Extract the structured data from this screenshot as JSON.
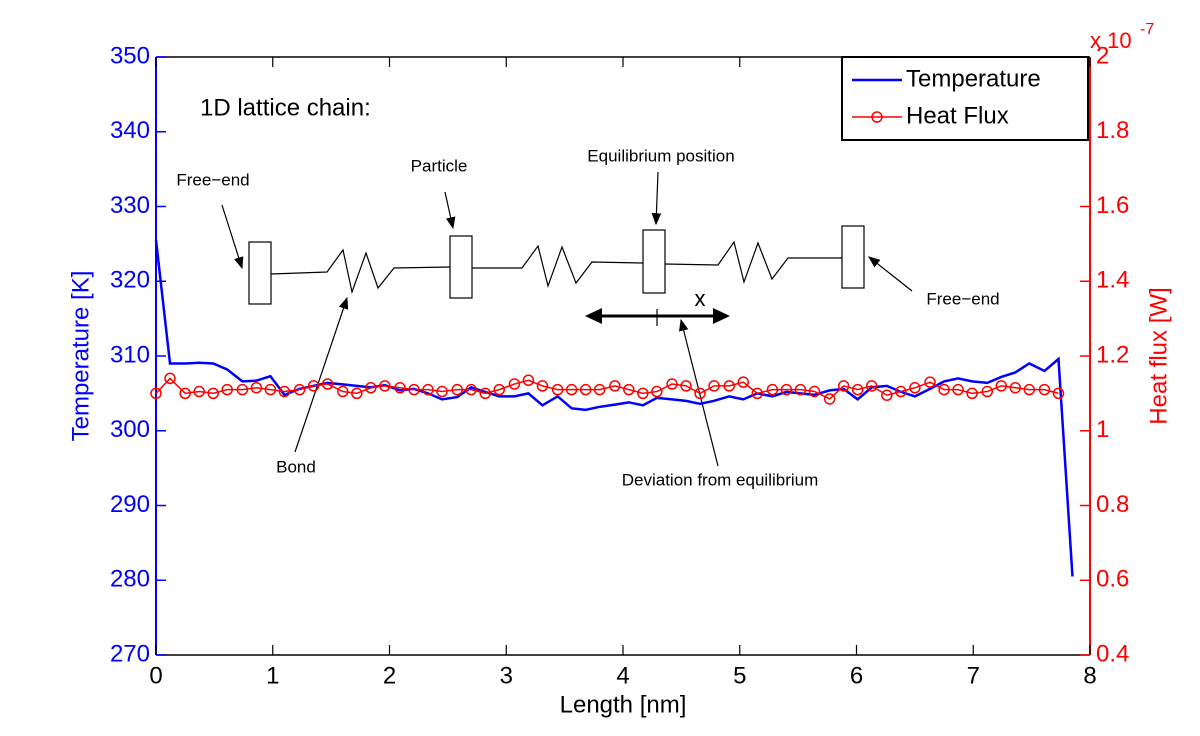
{
  "chart_data": {
    "type": "line",
    "x": [
      0,
      0.12,
      0.25,
      0.37,
      0.49,
      0.61,
      0.74,
      0.86,
      0.98,
      1.1,
      1.23,
      1.35,
      1.47,
      1.6,
      1.72,
      1.84,
      1.96,
      2.09,
      2.21,
      2.33,
      2.45,
      2.58,
      2.7,
      2.82,
      2.94,
      3.07,
      3.19,
      3.31,
      3.44,
      3.56,
      3.68,
      3.8,
      3.93,
      4.05,
      4.17,
      4.29,
      4.42,
      4.54,
      4.66,
      4.78,
      4.91,
      5.03,
      5.15,
      5.28,
      5.4,
      5.52,
      5.64,
      5.77,
      5.89,
      6.01,
      6.13,
      6.26,
      6.38,
      6.5,
      6.63,
      6.75,
      6.87,
      6.99,
      7.12,
      7.24,
      7.36,
      7.48,
      7.61,
      7.73,
      7.85
    ],
    "series": [
      {
        "name": "Temperature",
        "color": "#0000ff",
        "marker": "none",
        "values": [
          325.5,
          309,
          309,
          309.1,
          309,
          308.2,
          306.6,
          306.7,
          307.3,
          304.8,
          305.6,
          306,
          306.4,
          306.2,
          306,
          305.8,
          306.1,
          305.4,
          305.6,
          305,
          304.2,
          304.5,
          305.8,
          305.2,
          304.6,
          304.6,
          305,
          303.4,
          304.6,
          303,
          302.8,
          303.2,
          303.5,
          303.8,
          303.4,
          304.4,
          304.2,
          304,
          303.6,
          304,
          304.6,
          304.2,
          305,
          304.6,
          305.2,
          305,
          304.8,
          305.4,
          305.6,
          304.2,
          305.8,
          306,
          305.2,
          304.6,
          305.6,
          306.6,
          307,
          306.6,
          306.4,
          307.2,
          307.8,
          309,
          308,
          309.6,
          280.5
        ]
      },
      {
        "name": "Heat Flux",
        "color": "#ff0000",
        "marker": "circle",
        "axis": "y2",
        "values": [
          1.1,
          1.14,
          1.1,
          1.105,
          1.1,
          1.11,
          1.11,
          1.115,
          1.11,
          1.105,
          1.11,
          1.12,
          1.125,
          1.105,
          1.1,
          1.115,
          1.12,
          1.115,
          1.11,
          1.11,
          1.105,
          1.11,
          1.11,
          1.1,
          1.11,
          1.125,
          1.135,
          1.12,
          1.11,
          1.11,
          1.11,
          1.11,
          1.12,
          1.11,
          1.1,
          1.105,
          1.125,
          1.12,
          1.1,
          1.12,
          1.12,
          1.13,
          1.1,
          1.11,
          1.11,
          1.11,
          1.105,
          1.085,
          1.12,
          1.11,
          1.12,
          1.095,
          1.105,
          1.115,
          1.13,
          1.11,
          1.11,
          1.1,
          1.105,
          1.12,
          1.115,
          1.11,
          1.11,
          1.1,
          null
        ]
      }
    ],
    "xlim": [
      0,
      8
    ],
    "xticks": [
      0,
      1,
      2,
      3,
      4,
      5,
      6,
      7,
      8
    ],
    "ylim": [
      270,
      350
    ],
    "yticks": [
      270,
      280,
      290,
      300,
      310,
      320,
      330,
      340,
      350
    ],
    "y2lim": [
      0.4,
      2
    ],
    "y2ticks": [
      0.4,
      0.6,
      0.8,
      1,
      1.2,
      1.4,
      1.6,
      1.8,
      2
    ],
    "y2_multiplier": {
      "base": "x 10",
      "exponent": "-7"
    },
    "xlabel": "Length [nm]",
    "ylabel": "Temperature [K]",
    "y2label": "Heat flux [W]",
    "legend": "upper right",
    "annotations": {
      "title": "1D lattice chain:",
      "free_end_left": "Free−end",
      "particle": "Particle",
      "equilibrium": "Equilibrium position",
      "free_end_right": "Free−end",
      "bond": "Bond",
      "deviation": "Deviation from equilibrium",
      "x_symbol": "x"
    }
  }
}
